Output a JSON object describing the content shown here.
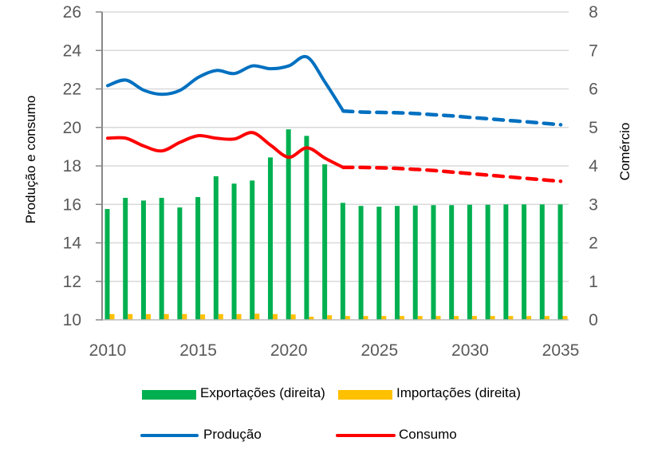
{
  "chart_data": {
    "type": "bar+line",
    "xlabel": "",
    "ylabel_left": "Produção e consumo",
    "ylabel_right": "Comércio",
    "ylim_left": [
      10,
      26
    ],
    "ylim_right": [
      0,
      8
    ],
    "yticks_left": [
      "10",
      "12",
      "14",
      "16",
      "18",
      "20",
      "22",
      "24",
      "26"
    ],
    "yticks_right": [
      "0",
      "1",
      "2",
      "3",
      "4",
      "5",
      "6",
      "7",
      "8"
    ],
    "xticks": [
      "2010",
      "2015",
      "2020",
      "2025",
      "2030",
      "2035"
    ],
    "grid": true,
    "legend_position": "bottom",
    "projection_start": 2023,
    "x": [
      2010,
      2011,
      2012,
      2013,
      2014,
      2015,
      2016,
      2017,
      2018,
      2019,
      2020,
      2021,
      2022,
      2023,
      2024,
      2025,
      2026,
      2027,
      2028,
      2029,
      2030,
      2031,
      2032,
      2033,
      2034,
      2035
    ],
    "series": [
      {
        "name": "Exportações (direita)",
        "type": "bar",
        "axis": "right",
        "color": "#00b050",
        "values": [
          2.88,
          3.17,
          3.1,
          3.17,
          2.92,
          3.19,
          3.73,
          3.54,
          3.62,
          4.22,
          4.95,
          4.78,
          4.04,
          3.04,
          2.96,
          2.94,
          2.96,
          2.97,
          2.98,
          2.98,
          2.99,
          2.99,
          3.0,
          3.0,
          3.0,
          3.0
        ]
      },
      {
        "name": "Importações (direita)",
        "type": "bar",
        "axis": "right",
        "color": "#ffc000",
        "values": [
          0.15,
          0.15,
          0.15,
          0.15,
          0.15,
          0.14,
          0.15,
          0.15,
          0.16,
          0.15,
          0.14,
          0.08,
          0.12,
          0.1,
          0.1,
          0.1,
          0.1,
          0.1,
          0.1,
          0.1,
          0.1,
          0.1,
          0.1,
          0.1,
          0.1,
          0.1
        ]
      },
      {
        "name": "Produção",
        "type": "line",
        "axis": "left",
        "color": "#0070c0",
        "values": [
          22.17,
          22.46,
          21.93,
          21.72,
          21.93,
          22.6,
          22.96,
          22.8,
          23.2,
          23.05,
          23.2,
          23.66,
          22.34,
          20.85,
          20.8,
          20.78,
          20.76,
          20.72,
          20.66,
          20.6,
          20.52,
          20.45,
          20.37,
          20.3,
          20.22,
          20.14
        ]
      },
      {
        "name": "Consumo",
        "type": "line",
        "axis": "left",
        "color": "#ff0000",
        "values": [
          19.44,
          19.44,
          19.03,
          18.78,
          19.23,
          19.57,
          19.44,
          19.4,
          19.73,
          19.07,
          18.45,
          18.94,
          18.4,
          17.92,
          17.92,
          17.9,
          17.87,
          17.82,
          17.76,
          17.68,
          17.6,
          17.52,
          17.44,
          17.36,
          17.28,
          17.2
        ]
      }
    ]
  }
}
